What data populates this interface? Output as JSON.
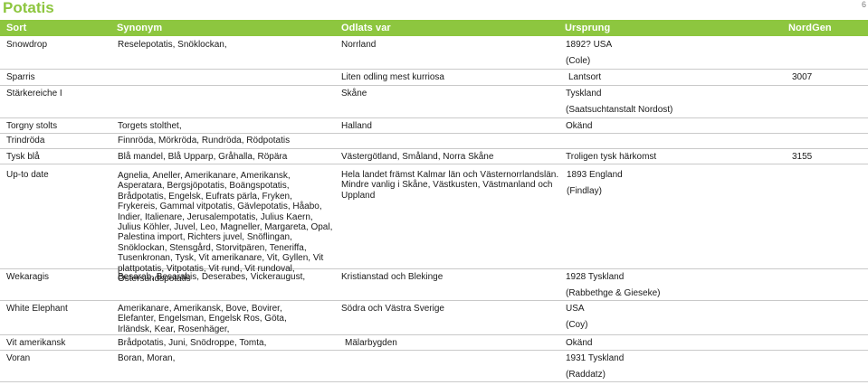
{
  "page": {
    "title": "Potatis",
    "number": "6"
  },
  "columns": {
    "sort": "Sort",
    "synonym": "Synonym",
    "odlats": "Odlats var",
    "ursprung": "Ursprung",
    "nordgen": "NordGen"
  },
  "rows": [
    {
      "sort": "Snowdrop",
      "synonym": "Reselepotatis, Snöklockan,",
      "odlats": "Norrland",
      "ursprung": "1892? USA",
      "ursprung2": "(Cole)",
      "nordgen": ""
    },
    {
      "sort": "Sparris",
      "synonym": "",
      "odlats": "Liten odling mest kurriosa",
      "ursprung": "Lantsort",
      "ursprung2": "",
      "nordgen": "3007"
    },
    {
      "sort": "Stärkereiche I",
      "synonym": "",
      "odlats": "Skåne",
      "ursprung": "Tyskland",
      "ursprung2": "(Saatsuchtanstalt Nordost)",
      "nordgen": ""
    },
    {
      "sort": "Torgny stolts",
      "synonym": "Torgets stolthet,",
      "odlats": "Halland",
      "ursprung": "Okänd",
      "ursprung2": "",
      "nordgen": ""
    },
    {
      "sort": "Trindröda",
      "synonym": "Finnröda, Mörkröda, Rundröda, Rödpotatis",
      "odlats": "",
      "ursprung": "",
      "ursprung2": "",
      "nordgen": ""
    },
    {
      "sort": "Tysk blå",
      "synonym": "Blå mandel, Blå Upparp, Gråhalla, Röpära",
      "odlats": "Västergötland, Småland, Norra Skåne",
      "ursprung": "Troligen tysk härkomst",
      "ursprung2": "",
      "nordgen": "3155"
    },
    {
      "sort": "Up-to date",
      "synonym": "Agnelia, Aneller, Amerikanare, Amerikansk, Asperatara, Bergsjöpotatis, Boängspotatis, Brådpotatis, Engelsk, Eufrats pärla, Fryken, Frykereis, Gammal vitpotatis, Gävlepotatis, Håabo, Indier, Italienare, Jerusalempotatis, Julius Kaern, Julius Köhler, Juvel, Leo, Magneller, Margareta, Opal, Palestina import, Richters juvel, Snöflingan, Snöklockan, Stensgård, Storvitpären, Teneriffa, Tusenkronan, Tysk, Vit amerikanare, Vit, Gyllen, Vit plattpotatis, Vitpotatis, Vit rund, Vit rundoval, Östersundspotatis",
      "odlats": "Hela landet främst Kalmar län och Västernorrlandslän. Mindre vanlig i Skåne, Västkusten, Västmanland och Uppland",
      "ursprung": "1893 England",
      "ursprung2": "(Findlay)",
      "nordgen": ""
    },
    {
      "sort": "Wekaragis",
      "synonym": "Besarab, Besarabis, Deserabes, Vickeraugust,",
      "odlats": "Kristianstad och Blekinge",
      "ursprung": "1928 Tyskland",
      "ursprung2": "(Rabbethge & Gieseke)",
      "nordgen": ""
    },
    {
      "sort": "White Elephant",
      "synonym": "Amerikanare, Amerikansk, Bove, Bovirer, Elefanter, Engelsman, Engelsk Ros, Göta, Irländsk, Kear, Rosenhäger,",
      "odlats": "Södra och Västra Sverige",
      "ursprung": "USA",
      "ursprung2": "(Coy)",
      "nordgen": ""
    },
    {
      "sort": "Vit amerikansk",
      "synonym": "Brådpotatis, Juni, Snödroppe, Tomta,",
      "odlats": "Mälarbygden",
      "ursprung": "Okänd",
      "ursprung2": "",
      "nordgen": ""
    },
    {
      "sort": "Voran",
      "synonym": "Boran, Moran,",
      "odlats": "",
      "ursprung": "1931 Tyskland",
      "ursprung2": "(Raddatz)",
      "nordgen": ""
    }
  ]
}
